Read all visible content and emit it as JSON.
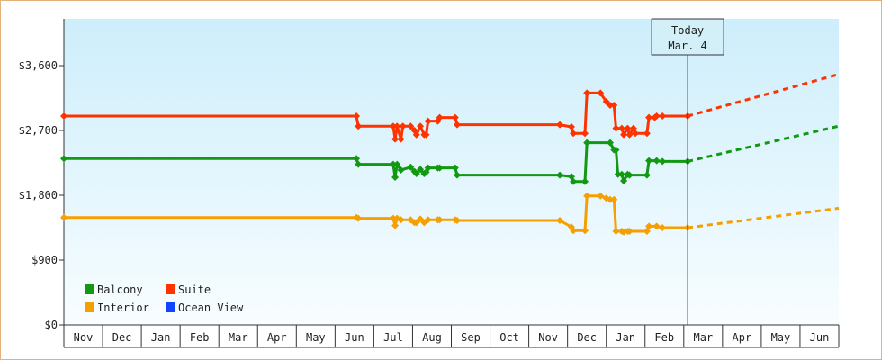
{
  "chart_data": {
    "type": "line",
    "title": "",
    "xlabel": "",
    "ylabel": "",
    "ylim": [
      0,
      4250
    ],
    "y_ticks": [
      0,
      900,
      1800,
      2700,
      3600
    ],
    "y_tick_labels": [
      "$0",
      "$900",
      "$1,800",
      "$2,700",
      "$3,600"
    ],
    "month_labels": [
      "Nov",
      "Dec",
      "Jan",
      "Feb",
      "Mar",
      "Apr",
      "May",
      "Jun",
      "Jul",
      "Aug",
      "Sep",
      "Oct",
      "Nov",
      "Dec",
      "Jan",
      "Feb",
      "Mar",
      "Apr",
      "May",
      "Jun"
    ],
    "x_domain": [
      0,
      20
    ],
    "today": {
      "line1": "Today",
      "line2": "Mar. 4",
      "x": 16.1
    },
    "legend_placement": "bottom-left",
    "series": [
      {
        "name": "Suite",
        "color": "#ff3300",
        "points": [
          [
            0,
            2900
          ],
          [
            7.55,
            2900
          ],
          [
            7.6,
            2760
          ],
          [
            8.5,
            2760
          ],
          [
            8.55,
            2580
          ],
          [
            8.6,
            2760
          ],
          [
            8.7,
            2580
          ],
          [
            8.75,
            2760
          ],
          [
            8.95,
            2760
          ],
          [
            9.05,
            2700
          ],
          [
            9.1,
            2640
          ],
          [
            9.2,
            2760
          ],
          [
            9.3,
            2640
          ],
          [
            9.35,
            2640
          ],
          [
            9.4,
            2830
          ],
          [
            9.65,
            2830
          ],
          [
            9.7,
            2880
          ],
          [
            10.1,
            2880
          ],
          [
            10.15,
            2780
          ],
          [
            12.8,
            2780
          ],
          [
            13.1,
            2750
          ],
          [
            13.15,
            2660
          ],
          [
            13.45,
            2660
          ],
          [
            13.5,
            3220
          ],
          [
            13.85,
            3220
          ],
          [
            14.0,
            3100
          ],
          [
            14.1,
            3050
          ],
          [
            14.2,
            3050
          ],
          [
            14.25,
            2730
          ],
          [
            14.4,
            2730
          ],
          [
            14.45,
            2640
          ],
          [
            14.55,
            2730
          ],
          [
            14.6,
            2640
          ],
          [
            14.7,
            2730
          ],
          [
            14.75,
            2660
          ],
          [
            15.05,
            2660
          ],
          [
            15.1,
            2880
          ],
          [
            15.25,
            2880
          ],
          [
            15.3,
            2900
          ],
          [
            15.45,
            2900
          ],
          [
            16.1,
            2900
          ]
        ],
        "forecast": [
          [
            16.1,
            2900
          ],
          [
            20,
            3480
          ]
        ]
      },
      {
        "name": "Balcony",
        "color": "#119911",
        "points": [
          [
            0,
            2310
          ],
          [
            7.55,
            2310
          ],
          [
            7.6,
            2230
          ],
          [
            8.5,
            2230
          ],
          [
            8.55,
            2050
          ],
          [
            8.6,
            2230
          ],
          [
            8.7,
            2150
          ],
          [
            8.95,
            2190
          ],
          [
            9.05,
            2130
          ],
          [
            9.1,
            2100
          ],
          [
            9.2,
            2160
          ],
          [
            9.3,
            2100
          ],
          [
            9.35,
            2120
          ],
          [
            9.4,
            2180
          ],
          [
            9.65,
            2180
          ],
          [
            9.7,
            2180
          ],
          [
            10.1,
            2180
          ],
          [
            10.15,
            2080
          ],
          [
            12.8,
            2080
          ],
          [
            13.1,
            2060
          ],
          [
            13.15,
            1990
          ],
          [
            13.45,
            1990
          ],
          [
            13.5,
            2530
          ],
          [
            14.1,
            2530
          ],
          [
            14.2,
            2430
          ],
          [
            14.25,
            2430
          ],
          [
            14.3,
            2090
          ],
          [
            14.4,
            2090
          ],
          [
            14.45,
            2000
          ],
          [
            14.55,
            2090
          ],
          [
            14.6,
            2080
          ],
          [
            15.05,
            2080
          ],
          [
            15.1,
            2280
          ],
          [
            15.3,
            2280
          ],
          [
            15.45,
            2270
          ],
          [
            16.1,
            2270
          ]
        ],
        "forecast": [
          [
            16.1,
            2270
          ],
          [
            20,
            2760
          ]
        ]
      },
      {
        "name": "Interior",
        "color": "#f5a000",
        "points": [
          [
            0,
            1490
          ],
          [
            7.55,
            1490
          ],
          [
            7.6,
            1480
          ],
          [
            8.5,
            1480
          ],
          [
            8.55,
            1380
          ],
          [
            8.6,
            1480
          ],
          [
            8.7,
            1460
          ],
          [
            8.95,
            1460
          ],
          [
            9.05,
            1420
          ],
          [
            9.1,
            1420
          ],
          [
            9.2,
            1470
          ],
          [
            9.3,
            1420
          ],
          [
            9.4,
            1460
          ],
          [
            9.65,
            1460
          ],
          [
            9.7,
            1460
          ],
          [
            10.1,
            1460
          ],
          [
            10.15,
            1450
          ],
          [
            12.8,
            1450
          ],
          [
            13.1,
            1360
          ],
          [
            13.15,
            1310
          ],
          [
            13.45,
            1310
          ],
          [
            13.5,
            1790
          ],
          [
            13.85,
            1790
          ],
          [
            14.0,
            1760
          ],
          [
            14.1,
            1740
          ],
          [
            14.2,
            1740
          ],
          [
            14.25,
            1300
          ],
          [
            14.4,
            1300
          ],
          [
            14.45,
            1290
          ],
          [
            14.55,
            1300
          ],
          [
            14.6,
            1300
          ],
          [
            15.05,
            1300
          ],
          [
            15.1,
            1370
          ],
          [
            15.3,
            1370
          ],
          [
            15.45,
            1350
          ],
          [
            16.1,
            1350
          ]
        ],
        "forecast": [
          [
            16.1,
            1350
          ],
          [
            20,
            1620
          ]
        ]
      },
      {
        "name": "Ocean View",
        "color": "#1144ff",
        "points": [],
        "forecast": []
      }
    ]
  }
}
